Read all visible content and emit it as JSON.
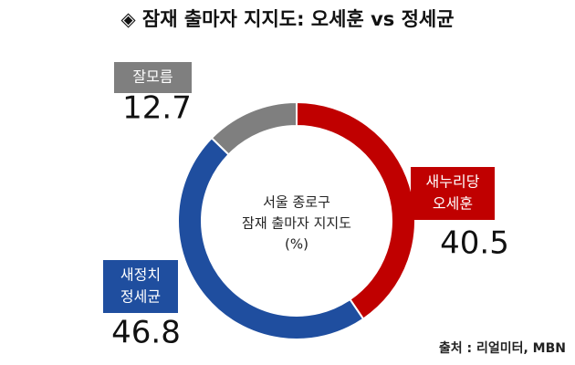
{
  "chart_data": {
    "type": "donut",
    "title": "◈ 잠재 출마자 지지도: 오세훈 vs 정세균",
    "center_label": [
      "서울 종로구",
      "잠재 출마자 지지도",
      "(%)"
    ],
    "categories": [
      [
        "새누리당",
        "오세훈"
      ],
      [
        "새정치",
        "정세균"
      ],
      [
        "잘모름"
      ]
    ],
    "values": [
      40.5,
      46.8,
      12.7
    ],
    "colors": [
      "#c00000",
      "#1f4e9f",
      "#7f7f7f"
    ],
    "source": "출처 : 리얼미터, MBN"
  }
}
